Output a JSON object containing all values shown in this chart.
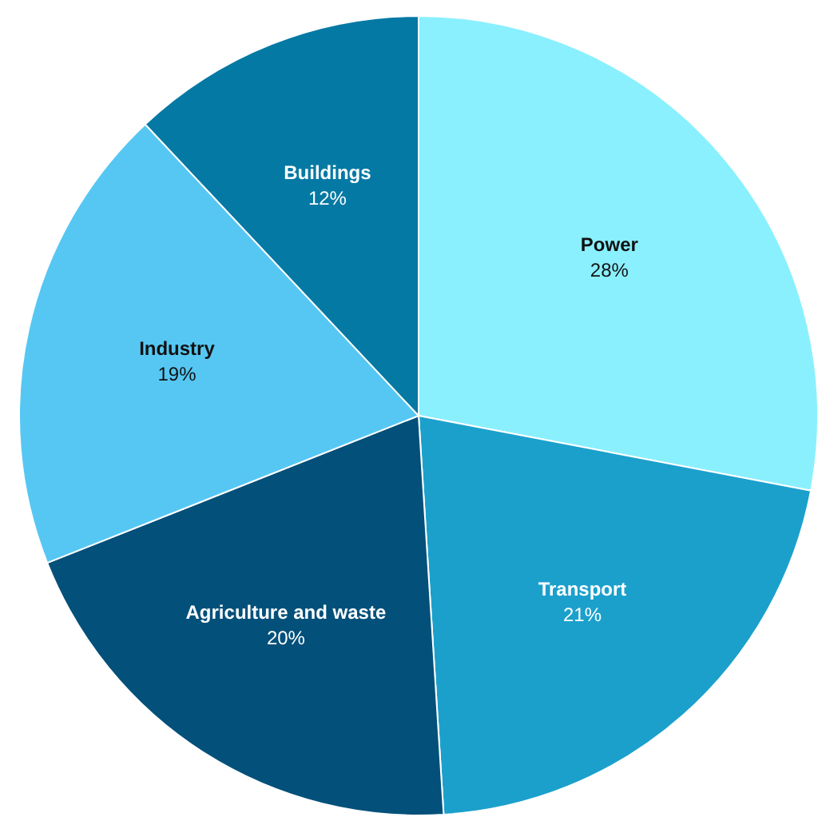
{
  "chart_data": {
    "type": "pie",
    "categories": [
      "Power",
      "Transport",
      "Agriculture and waste",
      "Industry",
      "Buildings"
    ],
    "values": [
      28,
      21,
      20,
      19,
      12
    ],
    "value_labels": [
      "28%",
      "21%",
      "20%",
      "19%",
      "12%"
    ],
    "colors": [
      "#8af0fe",
      "#1ba0cc",
      "#03507a",
      "#56c7f3",
      "#0479a4"
    ]
  }
}
